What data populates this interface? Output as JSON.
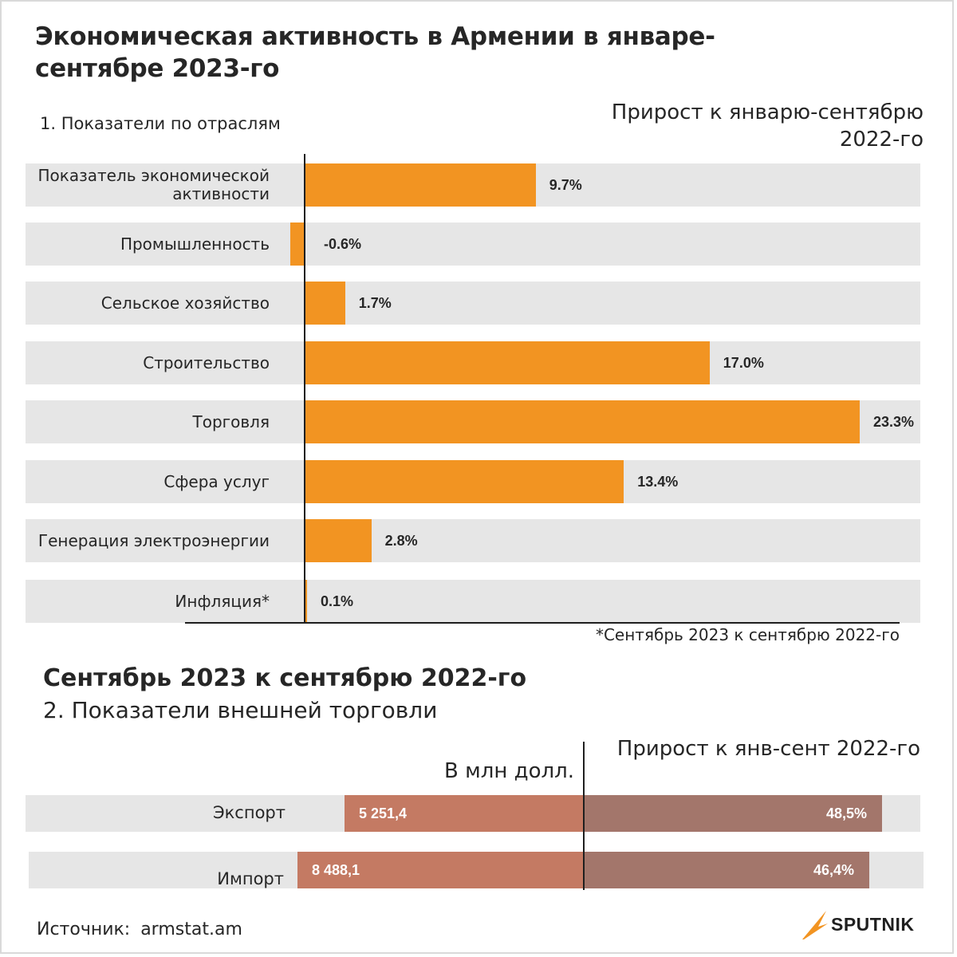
{
  "title": "Экономическая активность в Армении в январе-сентябре 2023-го",
  "section1_label": "1. Показатели по отраслям",
  "growth_header": "Прирост к январю-сентябрю 2022-го",
  "footnote": "*Сентябрь 2023 к сентябрю 2022-го",
  "subtitle2": "Сентябрь 2023 к сентябрю 2022-го",
  "section2_label": "2. Показатели внешней торговли",
  "unit_header": "В млн долл.",
  "growth_header2": "Прирост к янв-сент 2022-го",
  "source": "Источник: armstat.am",
  "logo": {
    "text": "SPUTNIK",
    "icon": "sputnik-arrow-icon",
    "color": "#f29422"
  },
  "colors": {
    "bar": "#f29422",
    "row_bg": "#e6e6e6",
    "trade_value": "#c47a63",
    "trade_growth": "#a3766b"
  },
  "chart_data": [
    {
      "type": "bar",
      "orientation": "horizontal",
      "categories": [
        "Показатель экономической активности",
        "Промышленность",
        "Сельское хозяйство",
        "Строительство",
        "Торговля",
        "Сфера услуг",
        "Генерация электроэнергии",
        "Инфляция*"
      ],
      "values": [
        9.7,
        -0.6,
        1.7,
        17.0,
        23.3,
        13.4,
        2.8,
        0.1
      ],
      "value_labels": [
        "9.7%",
        "-0.6%",
        "1.7%",
        "17.0%",
        "23.3%",
        "13.4%",
        "2.8%",
        "0.1%"
      ],
      "unit": "%",
      "xlim": [
        -0.6,
        23.3
      ]
    },
    {
      "type": "table",
      "rows": [
        {
          "label": "Экспорт",
          "value": 5251.4,
          "value_label": "5 251,4",
          "growth": 48.5,
          "growth_label": "48,5%"
        },
        {
          "label": "Импорт",
          "value": 8488.1,
          "value_label": "8 488,1",
          "growth": 46.4,
          "growth_label": "46,4%"
        }
      ]
    }
  ]
}
